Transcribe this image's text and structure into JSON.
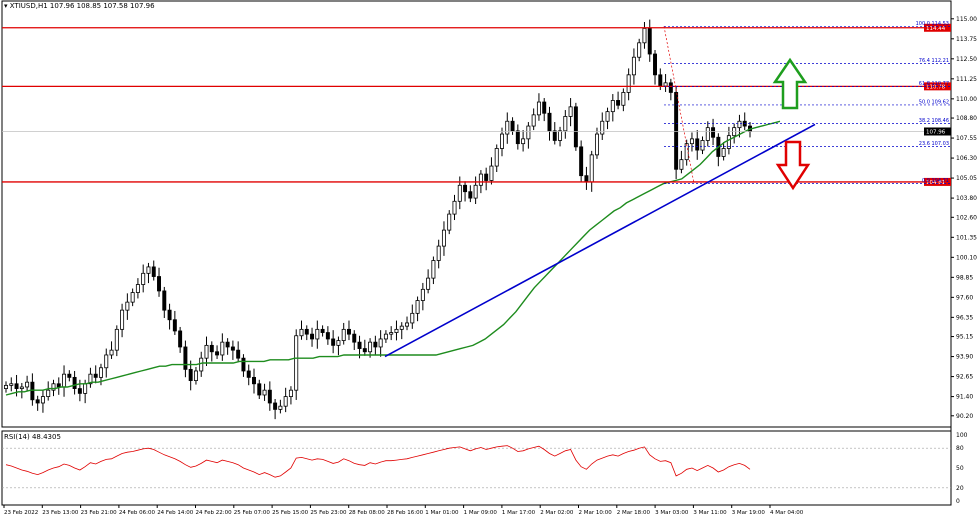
{
  "header": {
    "marker": "▾",
    "symbol": "XTIUSD,H1",
    "ohlc": "107.96 108.85 107.58 107.96"
  },
  "rsi_header": "RSI(14) 48.4305",
  "colors": {
    "bull": "#ffffff",
    "bear": "#000000",
    "ma": "#1e8c1e",
    "trend": "#0000cc",
    "level": "#e00000",
    "fib": "#0000cc",
    "rsi": "#e00000",
    "up_arrow": "#1e9e1e",
    "down_arrow": "#e00000"
  },
  "chart_data": [
    {
      "type": "candlestick",
      "symbol": "XTIUSD",
      "timeframe": "H1",
      "ylim": [
        89.5,
        115.3
      ],
      "y_ticks": [
        "115.00",
        "113.75",
        "112.50",
        "111.25",
        "110.00",
        "108.80",
        "107.55",
        "106.30",
        "105.05",
        "103.80",
        "102.60",
        "101.35",
        "100.10",
        "98.85",
        "97.60",
        "96.35",
        "95.15",
        "93.90",
        "92.65",
        "91.40",
        "90.20"
      ],
      "x_ticks": [
        "23 Feb 2022",
        "23 Feb 13:00",
        "23 Feb 21:00",
        "24 Feb 06:00",
        "24 Feb 14:00",
        "24 Feb 22:00",
        "25 Feb 07:00",
        "25 Feb 15:00",
        "25 Feb 23:00",
        "28 Feb 08:00",
        "28 Feb 16:00",
        "1 Mar 01:00",
        "1 Mar 09:00",
        "1 Mar 17:00",
        "2 Mar 02:00",
        "2 Mar 10:00",
        "2 Mar 18:00",
        "3 Mar 03:00",
        "3 Mar 11:00",
        "3 Mar 19:00",
        "4 Mar 04:00"
      ],
      "closes": [
        92.1,
        92.2,
        91.9,
        92.0,
        92.3,
        91.2,
        91.0,
        91.4,
        91.8,
        92.2,
        92.0,
        92.8,
        92.6,
        91.9,
        91.6,
        92.2,
        92.8,
        92.6,
        93.2,
        94.0,
        94.3,
        95.6,
        96.8,
        97.3,
        97.9,
        98.4,
        99.1,
        99.5,
        98.9,
        98.0,
        96.8,
        96.2,
        95.5,
        94.5,
        93.1,
        92.4,
        93.0,
        93.8,
        94.6,
        94.2,
        94.0,
        94.8,
        94.5,
        94.3,
        93.8,
        93.0,
        92.6,
        92.2,
        91.5,
        91.8,
        91.0,
        90.6,
        90.8,
        91.4,
        91.8,
        95.2,
        95.6,
        95.3,
        95.0,
        95.6,
        95.4,
        95.0,
        94.6,
        94.9,
        95.6,
        95.3,
        94.8,
        94.4,
        94.2,
        94.8,
        94.5,
        95.0,
        95.3,
        95.4,
        95.6,
        95.8,
        96.0,
        96.6,
        97.4,
        98.1,
        98.8,
        99.9,
        100.8,
        101.8,
        102.8,
        103.6,
        104.6,
        104.2,
        103.8,
        104.6,
        105.3,
        104.9,
        105.8,
        106.9,
        107.8,
        108.6,
        108.0,
        107.2,
        107.5,
        108.3,
        109.0,
        109.8,
        109.1,
        108.0,
        107.4,
        108.0,
        108.9,
        109.5,
        107.0,
        105.2,
        104.8,
        106.5,
        107.8,
        108.6,
        109.2,
        109.9,
        109.6,
        110.4,
        111.5,
        112.6,
        113.5,
        114.4,
        112.8,
        111.5,
        110.8,
        111.0,
        110.4,
        105.6,
        106.2,
        107.2,
        107.5,
        106.8,
        107.4,
        108.2,
        107.6,
        106.4,
        106.9,
        107.7,
        108.2,
        108.6,
        108.3,
        107.96
      ],
      "ma_closes": [
        91.5,
        91.6,
        91.7,
        91.7,
        91.8,
        91.8,
        91.8,
        91.9,
        91.9,
        92.0,
        92.0,
        92.1,
        92.2,
        92.2,
        92.3,
        92.3,
        92.4,
        92.5,
        92.6,
        92.7,
        92.8,
        92.9,
        93.0,
        93.1,
        93.2,
        93.3,
        93.3,
        93.4,
        93.4,
        93.4,
        93.4,
        93.4,
        93.5,
        93.5,
        93.5,
        93.5,
        93.5,
        93.5,
        93.6,
        93.6,
        93.6,
        93.6,
        93.6,
        93.7,
        93.7,
        93.7,
        93.7,
        93.8,
        93.8,
        93.8,
        93.8,
        93.9,
        93.9,
        93.9,
        93.9,
        94.0,
        94.0,
        94.0,
        94.0,
        94.0,
        94.0,
        94.0,
        94.0,
        94.0,
        94.0,
        94.0,
        94.0,
        94.0,
        94.0,
        94.0,
        94.0,
        94.1,
        94.2,
        94.3,
        94.4,
        94.5,
        94.6,
        94.8,
        95.0,
        95.3,
        95.6,
        95.9,
        96.3,
        96.7,
        97.2,
        97.7,
        98.2,
        98.6,
        99.0,
        99.4,
        99.8,
        100.2,
        100.6,
        101.0,
        101.4,
        101.8,
        102.1,
        102.4,
        102.7,
        103.0,
        103.2,
        103.5,
        103.7,
        103.9,
        104.1,
        104.3,
        104.5,
        104.7,
        104.8,
        104.9,
        105.0,
        105.3,
        105.6,
        105.9,
        106.3,
        106.7,
        107.0,
        107.3,
        107.5,
        107.7,
        107.9,
        108.1,
        108.2,
        108.3,
        108.4,
        108.5,
        108.6
      ],
      "current_price": "107.96",
      "horizontal_levels": [
        "114.44",
        "110.78",
        "104.81"
      ],
      "fibonacci": [
        {
          "ratio": "100.0",
          "price": "114.53"
        },
        {
          "ratio": "76.4",
          "price": "112.21"
        },
        {
          "ratio": "61.8",
          "price": "110.77"
        },
        {
          "ratio": "50.0",
          "price": "109.62"
        },
        {
          "ratio": "38.2",
          "price": "108.46"
        },
        {
          "ratio": "23.6",
          "price": "107.03"
        },
        {
          "ratio": "0.0",
          "price": "104.71"
        }
      ],
      "annotations": [
        "trendline (support)",
        "up arrow",
        "down arrow"
      ]
    },
    {
      "type": "line",
      "name": "RSI(14)",
      "ylim": [
        0,
        100
      ],
      "y_ticks": [
        "100",
        "80",
        "50",
        "20",
        "0"
      ],
      "levels": [
        80,
        20
      ],
      "values": [
        55,
        53,
        50,
        47,
        45,
        42,
        40,
        43,
        47,
        50,
        52,
        56,
        54,
        50,
        47,
        52,
        58,
        56,
        60,
        63,
        64,
        68,
        72,
        74,
        75,
        77,
        79,
        80,
        78,
        74,
        70,
        67,
        64,
        60,
        55,
        51,
        53,
        57,
        62,
        60,
        58,
        62,
        60,
        58,
        55,
        50,
        47,
        44,
        40,
        43,
        40,
        36,
        38,
        44,
        50,
        65,
        66,
        64,
        62,
        64,
        63,
        60,
        57,
        59,
        64,
        61,
        57,
        55,
        54,
        58,
        56,
        59,
        61,
        61,
        62,
        63,
        64,
        66,
        68,
        70,
        72,
        74,
        76,
        78,
        80,
        81,
        82,
        79,
        76,
        79,
        81,
        78,
        80,
        82,
        83,
        84,
        80,
        75,
        76,
        79,
        81,
        83,
        78,
        72,
        68,
        72,
        76,
        78,
        62,
        52,
        48,
        56,
        62,
        65,
        68,
        70,
        68,
        72,
        75,
        77,
        80,
        82,
        70,
        64,
        60,
        61,
        58,
        38,
        42,
        48,
        50,
        46,
        50,
        54,
        50,
        44,
        47,
        52,
        55,
        57,
        54,
        48
      ]
    }
  ]
}
